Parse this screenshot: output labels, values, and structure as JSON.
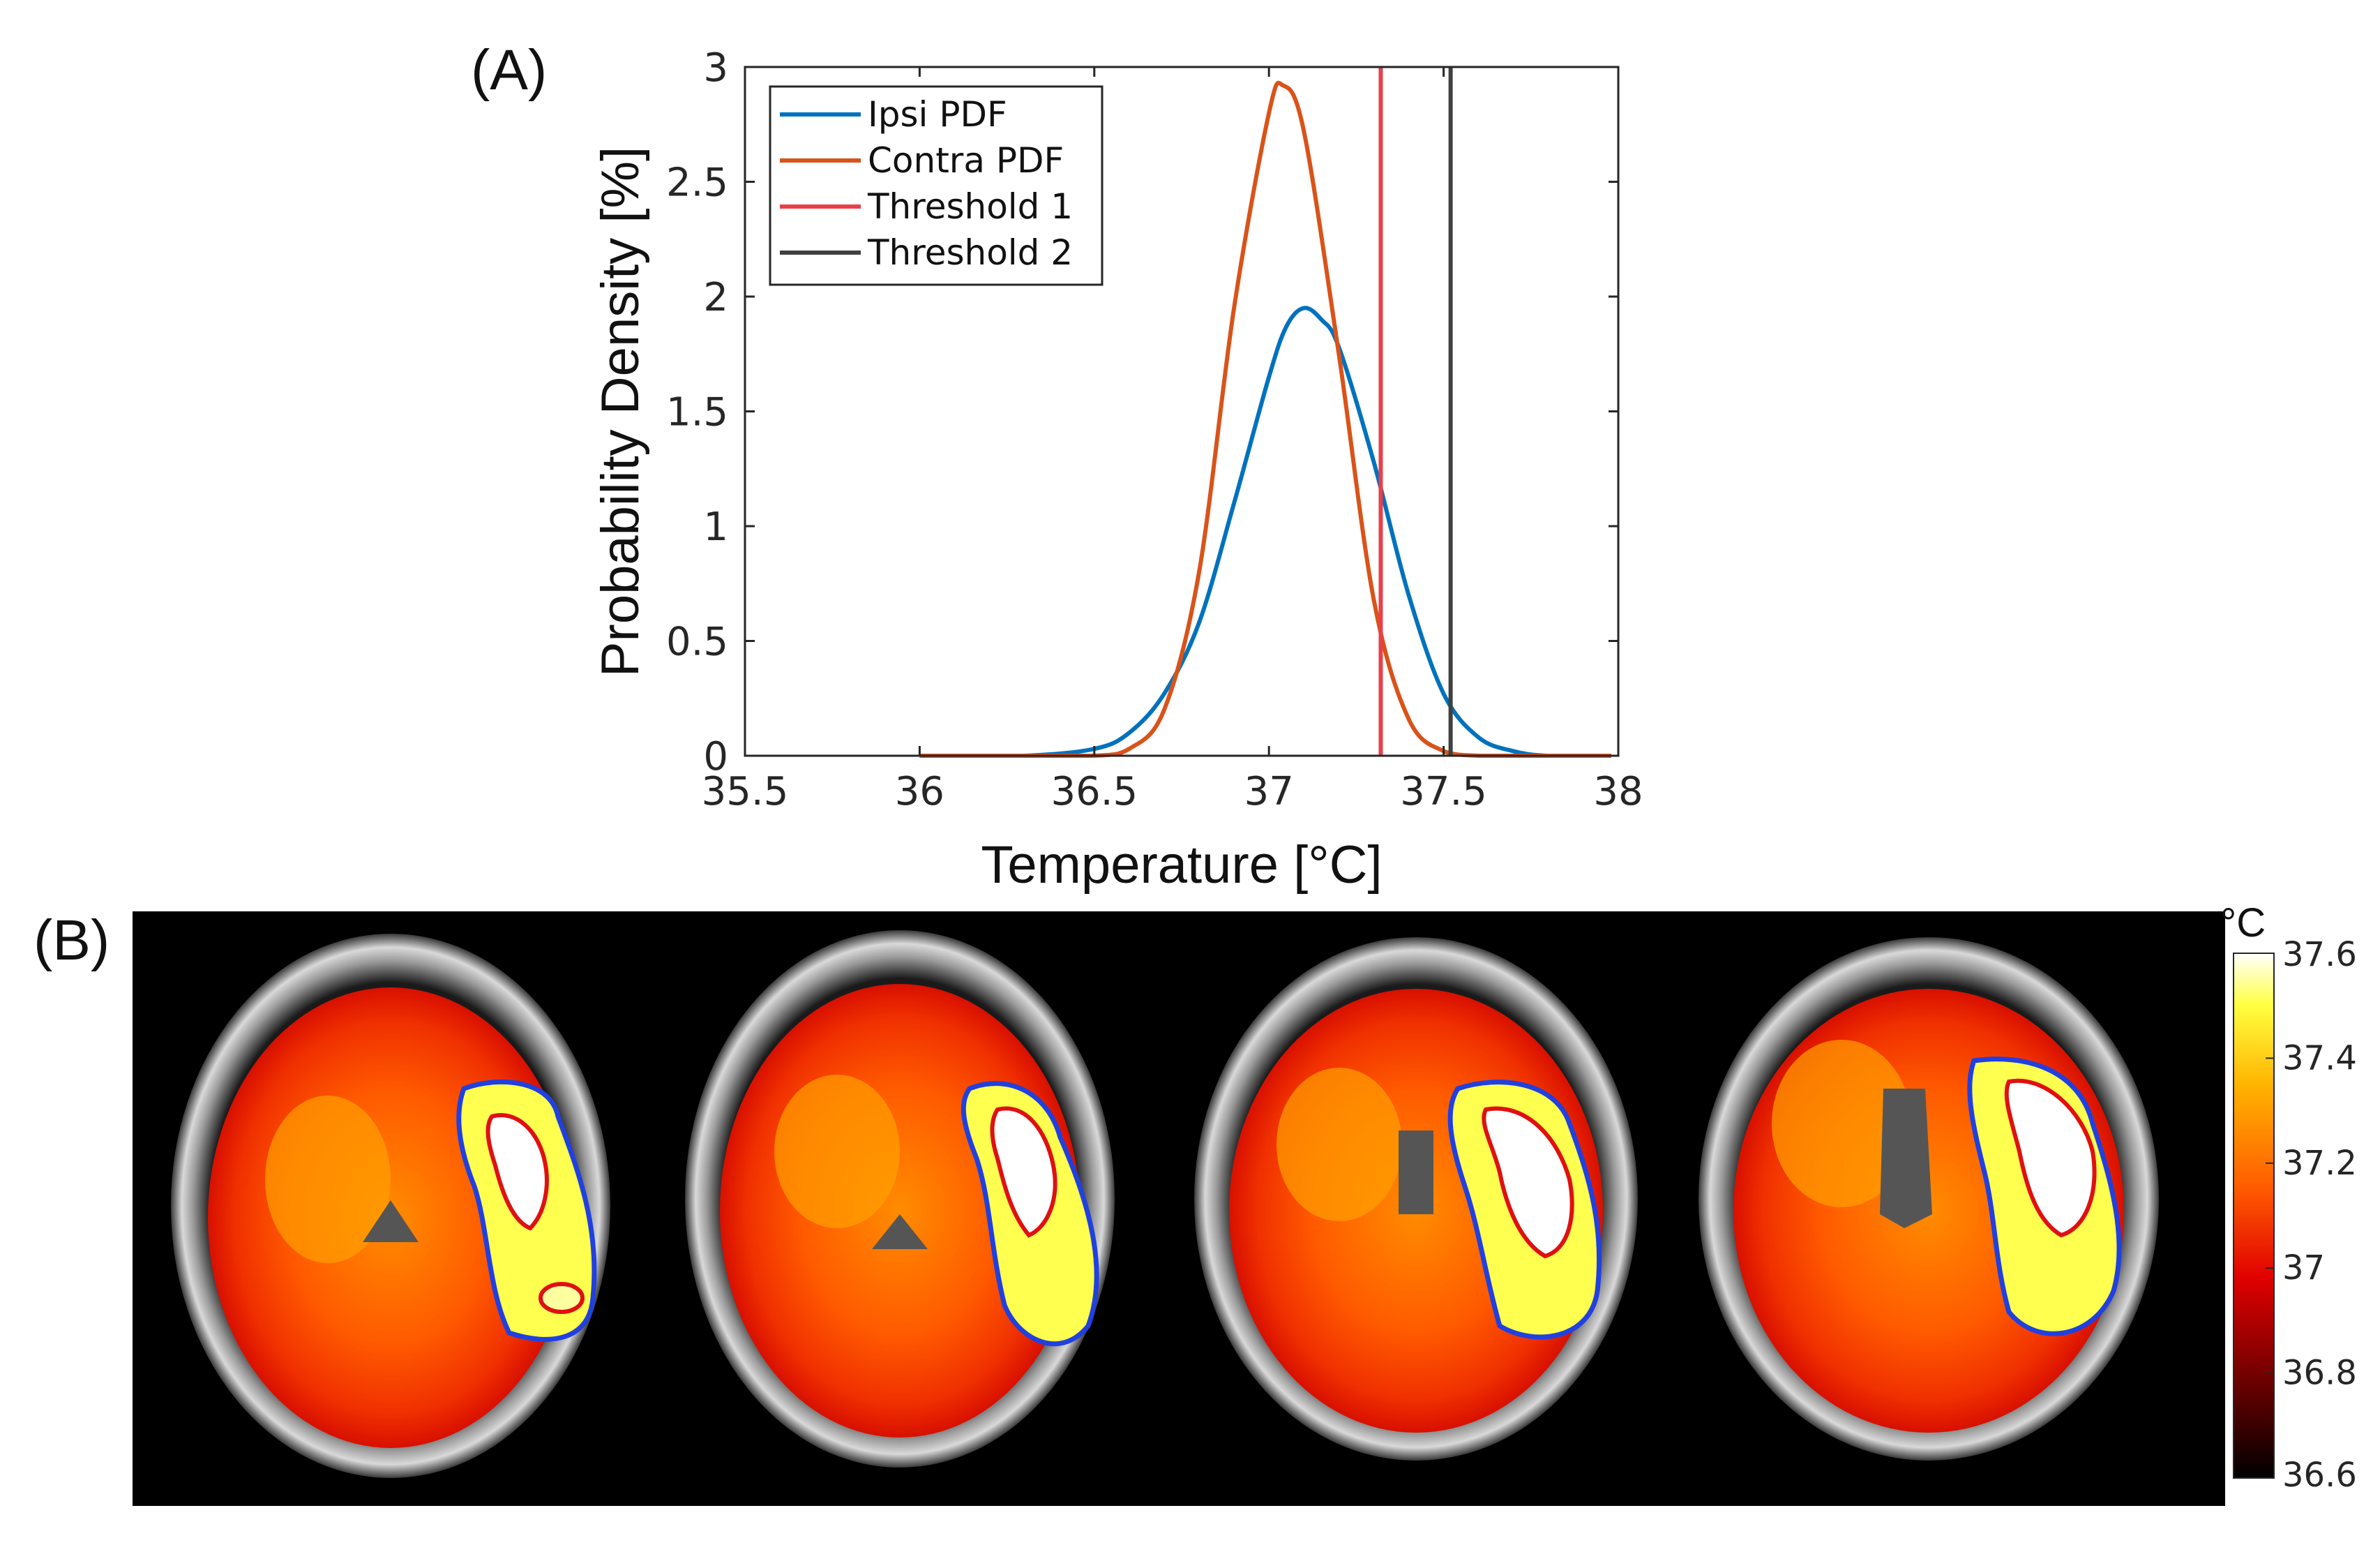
{
  "panel_a_label": "(A)",
  "panel_b_label": "(B)",
  "chart_data": {
    "type": "line",
    "title": "",
    "xlabel": "Temperature [°C]",
    "ylabel": "Probability Density [%]",
    "xlim": [
      35.5,
      38
    ],
    "ylim": [
      0,
      3
    ],
    "x_ticks": [
      35.5,
      36,
      36.5,
      37,
      37.5,
      38
    ],
    "x_tick_labels": [
      "35.5",
      "36",
      "36.5",
      "37",
      "37.5",
      "38"
    ],
    "y_ticks": [
      0,
      0.5,
      1,
      1.5,
      2,
      2.5,
      3
    ],
    "y_tick_labels": [
      "0",
      "0.5",
      "1",
      "1.5",
      "2",
      "2.5",
      "3"
    ],
    "legend_position": "top-left",
    "series": [
      {
        "name": "Ipsi PDF",
        "color": "#0072BD",
        "x": [
          36.0,
          36.3,
          36.5,
          36.6,
          36.7,
          36.8,
          36.9,
          37.0,
          37.05,
          37.1,
          37.15,
          37.2,
          37.3,
          37.4,
          37.5,
          37.6,
          37.7,
          37.8,
          37.98
        ],
        "y": [
          0.0,
          0.0,
          0.03,
          0.1,
          0.27,
          0.58,
          1.1,
          1.65,
          1.87,
          1.95,
          1.9,
          1.78,
          1.28,
          0.7,
          0.27,
          0.08,
          0.02,
          0.0,
          0.0
        ]
      },
      {
        "name": "Contra PDF",
        "color": "#D95319",
        "x": [
          36.0,
          36.3,
          36.5,
          36.6,
          36.7,
          36.8,
          36.9,
          37.0,
          37.04,
          37.1,
          37.2,
          37.3,
          37.4,
          37.5,
          37.6,
          37.7,
          37.98
        ],
        "y": [
          0.0,
          0.0,
          0.0,
          0.03,
          0.2,
          0.8,
          1.95,
          2.8,
          2.92,
          2.72,
          1.75,
          0.68,
          0.16,
          0.02,
          0.0,
          0.0,
          0.0
        ]
      },
      {
        "name": "Threshold 1",
        "color": "#E8404A",
        "type": "vline",
        "x": 37.32
      },
      {
        "name": "Threshold 2",
        "color": "#404040",
        "type": "vline",
        "x": 37.52
      }
    ],
    "colorbar": {
      "unit": "°C",
      "range": [
        36.6,
        37.6
      ],
      "tick_labels": [
        "37.6",
        "37.4",
        "37.2",
        "37",
        "36.8",
        "36.6"
      ]
    }
  }
}
